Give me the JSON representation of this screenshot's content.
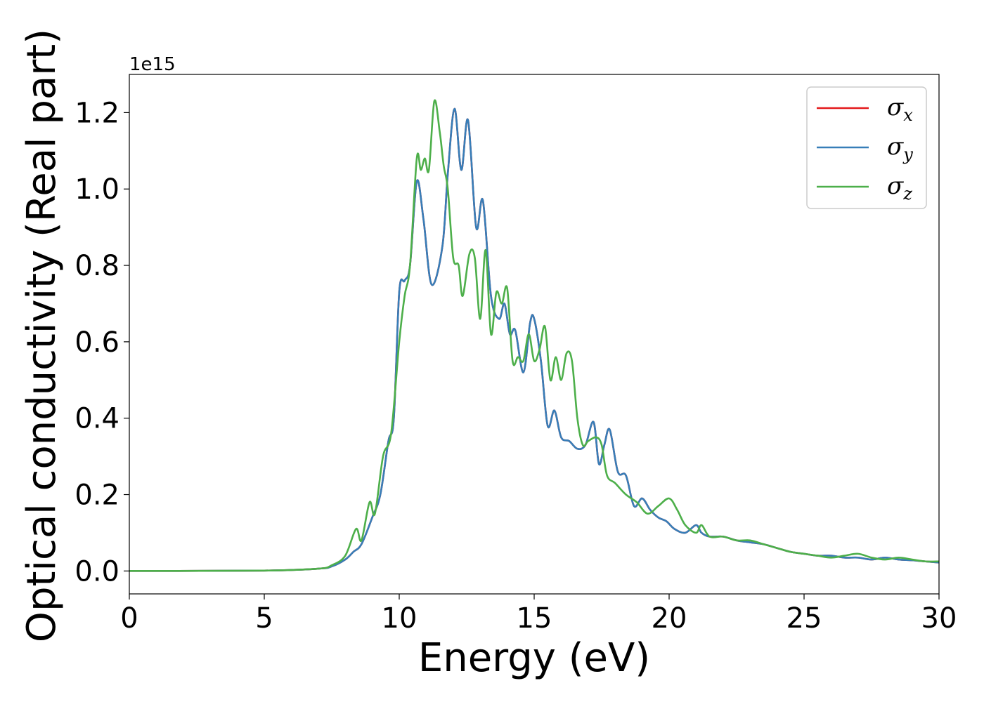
{
  "chart_data": {
    "type": "line",
    "xlabel": "Energy (eV)",
    "ylabel": "Optical conductivity (Real part)",
    "y_offset_label": "1e15",
    "xlim": [
      0,
      30
    ],
    "ylim": [
      -0.06,
      1.3
    ],
    "x_ticks": [
      0,
      5,
      10,
      15,
      20,
      25,
      30
    ],
    "x_tick_labels": [
      "0",
      "5",
      "10",
      "15",
      "20",
      "25",
      "30"
    ],
    "y_ticks": [
      0.0,
      0.2,
      0.4,
      0.6,
      0.8,
      1.0,
      1.2
    ],
    "y_tick_labels": [
      "0.0",
      "0.2",
      "0.4",
      "0.6",
      "0.8",
      "1.0",
      "1.2"
    ],
    "grid": false,
    "legend_position": "top-right",
    "series": [
      {
        "name": "σx",
        "symbol": "σ",
        "subscript": "x",
        "color": "#e41a1c",
        "x": [
          0,
          5,
          7,
          7.5,
          8,
          8.3,
          8.6,
          9.0,
          9.3,
          9.6,
          9.8,
          10.0,
          10.2,
          10.4,
          10.65,
          10.9,
          11.2,
          11.6,
          11.8,
          12.05,
          12.3,
          12.55,
          12.85,
          13.1,
          13.4,
          13.7,
          13.9,
          14.1,
          14.3,
          14.6,
          14.85,
          15.0,
          15.25,
          15.5,
          15.75,
          16.0,
          16.3,
          16.6,
          16.9,
          17.2,
          17.4,
          17.6,
          17.8,
          18.1,
          18.4,
          18.7,
          19.0,
          19.3,
          19.6,
          19.9,
          20.2,
          20.6,
          21.0,
          21.2,
          21.5,
          22.0,
          22.5,
          23.0,
          23.5,
          24.0,
          24.5,
          25.0,
          25.5,
          26.0,
          26.5,
          27.0,
          27.5,
          28.0,
          28.5,
          29.0,
          29.5,
          30.0
        ],
        "y": [
          0.0,
          0.001,
          0.006,
          0.012,
          0.03,
          0.05,
          0.07,
          0.14,
          0.2,
          0.34,
          0.4,
          0.73,
          0.76,
          0.8,
          1.02,
          0.92,
          0.75,
          0.85,
          1.04,
          1.21,
          1.05,
          1.18,
          0.9,
          0.97,
          0.72,
          0.66,
          0.7,
          0.62,
          0.63,
          0.52,
          0.65,
          0.66,
          0.55,
          0.38,
          0.42,
          0.35,
          0.34,
          0.32,
          0.33,
          0.39,
          0.28,
          0.33,
          0.37,
          0.26,
          0.25,
          0.17,
          0.19,
          0.16,
          0.14,
          0.13,
          0.11,
          0.1,
          0.12,
          0.1,
          0.09,
          0.09,
          0.08,
          0.075,
          0.07,
          0.06,
          0.05,
          0.045,
          0.04,
          0.04,
          0.035,
          0.035,
          0.03,
          0.035,
          0.03,
          0.028,
          0.025,
          0.022
        ]
      },
      {
        "name": "σy",
        "symbol": "σ",
        "subscript": "y",
        "color": "#377eb8",
        "x": [
          0,
          5,
          7,
          7.5,
          8,
          8.3,
          8.6,
          9.0,
          9.3,
          9.6,
          9.8,
          10.0,
          10.2,
          10.4,
          10.65,
          10.9,
          11.2,
          11.6,
          11.8,
          12.05,
          12.3,
          12.55,
          12.85,
          13.1,
          13.4,
          13.7,
          13.9,
          14.1,
          14.3,
          14.6,
          14.85,
          15.0,
          15.25,
          15.5,
          15.75,
          16.0,
          16.3,
          16.6,
          16.9,
          17.2,
          17.4,
          17.6,
          17.8,
          18.1,
          18.4,
          18.7,
          19.0,
          19.3,
          19.6,
          19.9,
          20.2,
          20.6,
          21.0,
          21.2,
          21.5,
          22.0,
          22.5,
          23.0,
          23.5,
          24.0,
          24.5,
          25.0,
          25.5,
          26.0,
          26.5,
          27.0,
          27.5,
          28.0,
          28.5,
          29.0,
          29.5,
          30.0
        ],
        "y": [
          0.0,
          0.001,
          0.006,
          0.012,
          0.03,
          0.05,
          0.07,
          0.14,
          0.2,
          0.34,
          0.4,
          0.73,
          0.76,
          0.8,
          1.02,
          0.92,
          0.75,
          0.85,
          1.04,
          1.21,
          1.05,
          1.18,
          0.9,
          0.97,
          0.72,
          0.66,
          0.7,
          0.62,
          0.63,
          0.52,
          0.65,
          0.66,
          0.55,
          0.38,
          0.42,
          0.35,
          0.34,
          0.32,
          0.33,
          0.39,
          0.28,
          0.33,
          0.37,
          0.26,
          0.25,
          0.17,
          0.19,
          0.16,
          0.14,
          0.13,
          0.11,
          0.1,
          0.12,
          0.1,
          0.09,
          0.09,
          0.08,
          0.075,
          0.07,
          0.06,
          0.05,
          0.045,
          0.04,
          0.04,
          0.035,
          0.035,
          0.03,
          0.035,
          0.03,
          0.028,
          0.025,
          0.022
        ]
      },
      {
        "name": "σz",
        "symbol": "σ",
        "subscript": "z",
        "color": "#4daf4a",
        "x": [
          0,
          5,
          7,
          7.5,
          8,
          8.4,
          8.6,
          8.9,
          9.1,
          9.4,
          9.7,
          10.0,
          10.2,
          10.4,
          10.65,
          10.8,
          10.95,
          11.1,
          11.3,
          11.5,
          11.65,
          11.8,
          12.0,
          12.2,
          12.35,
          12.6,
          12.8,
          13.0,
          13.2,
          13.4,
          13.6,
          13.8,
          14.0,
          14.2,
          14.4,
          14.6,
          14.8,
          15.0,
          15.2,
          15.4,
          15.6,
          15.8,
          16.0,
          16.2,
          16.4,
          16.6,
          16.8,
          17.0,
          17.3,
          17.5,
          17.7,
          18.0,
          18.4,
          18.8,
          19.2,
          19.6,
          20.0,
          20.3,
          20.6,
          21.0,
          21.2,
          21.5,
          22.0,
          22.5,
          23.0,
          23.5,
          24.0,
          24.5,
          25.0,
          25.5,
          26.0,
          26.5,
          27.0,
          27.5,
          28.0,
          28.5,
          29.0,
          29.5,
          30.0
        ],
        "y": [
          0.0,
          0.001,
          0.006,
          0.015,
          0.04,
          0.11,
          0.08,
          0.18,
          0.15,
          0.3,
          0.36,
          0.6,
          0.72,
          0.8,
          1.08,
          1.05,
          1.08,
          1.05,
          1.23,
          1.15,
          1.06,
          1.0,
          0.82,
          0.8,
          0.72,
          0.83,
          0.82,
          0.66,
          0.84,
          0.62,
          0.73,
          0.7,
          0.74,
          0.55,
          0.56,
          0.55,
          0.62,
          0.55,
          0.58,
          0.64,
          0.5,
          0.56,
          0.5,
          0.57,
          0.55,
          0.4,
          0.33,
          0.34,
          0.35,
          0.33,
          0.25,
          0.23,
          0.2,
          0.18,
          0.15,
          0.17,
          0.19,
          0.16,
          0.12,
          0.1,
          0.12,
          0.09,
          0.09,
          0.08,
          0.08,
          0.07,
          0.06,
          0.05,
          0.045,
          0.04,
          0.035,
          0.04,
          0.045,
          0.035,
          0.03,
          0.035,
          0.03,
          0.025,
          0.025
        ]
      }
    ]
  }
}
